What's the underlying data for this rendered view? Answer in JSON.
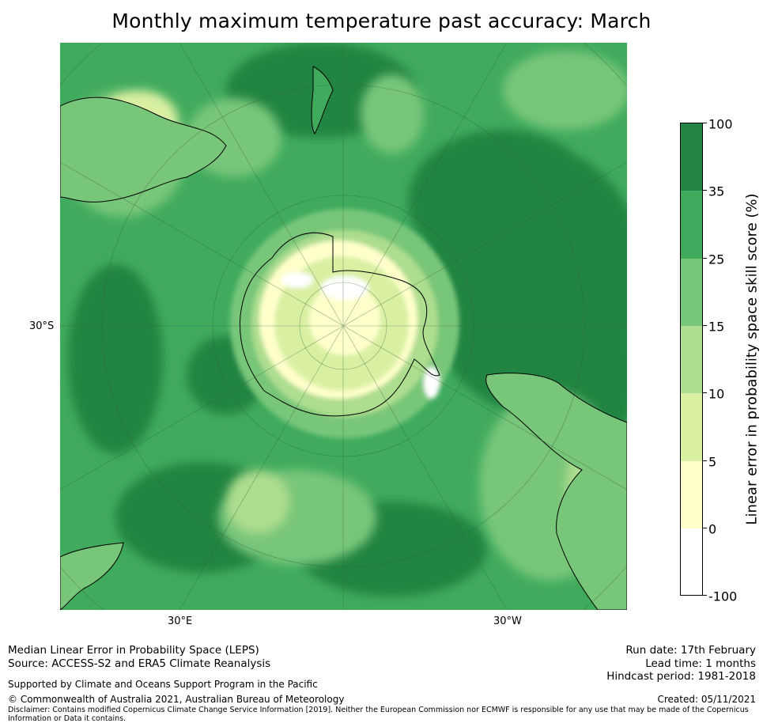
{
  "title": "Monthly maximum temperature past accuracy: March",
  "map": {
    "labels": {
      "lat_left": "30°S",
      "lon_bottom_left": "30°E",
      "lon_bottom_right": "30°W"
    }
  },
  "colorbar": {
    "label": "Linear error in probability space skill score (%)",
    "ticks": [
      "100",
      "35",
      "25",
      "15",
      "10",
      "5",
      "0",
      "-100"
    ],
    "colors": [
      "#238443",
      "#41ab5d",
      "#78c679",
      "#addd8e",
      "#d9f0a3",
      "#ffffcc",
      "#ffffff"
    ]
  },
  "footer": {
    "line1": "Median Linear Error in Probability Space (LEPS)",
    "line2": "Source: ACCESS-S2 and ERA5 Climate Reanalysis",
    "support": "Supported by Climate and Oceans Support Program in the Pacific",
    "copyright": "© Commonwealth of Australia 2021, Australian Bureau of Meteorology",
    "disclaimer": "Disclaimer: Contains modified Copernicus Climate Change Service Information [2019]. Neither the European Commission nor ECMWF is responsible for any use that may be made of the Copernicus Information or Data it contains.",
    "run_date": "Run date: 17th February",
    "lead_time": "Lead time: 1 months",
    "hindcast": "Hindcast period: 1981-2018",
    "created": "Created: 05/11/2021"
  }
}
